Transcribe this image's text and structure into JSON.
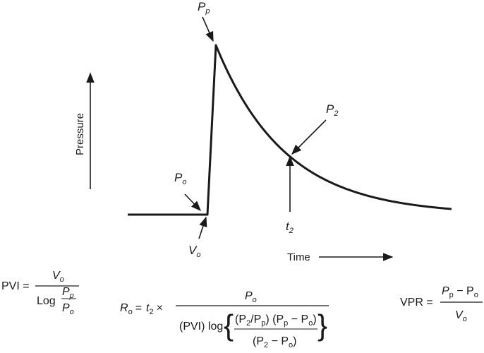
{
  "diagram": {
    "y_axis_label": "Pressure",
    "x_axis_label": "Time",
    "labels": {
      "P_p": {
        "main": "P",
        "sub": "p"
      },
      "P_2": {
        "main": "P",
        "sub": "2"
      },
      "P_o": {
        "main": "P",
        "sub": "o"
      },
      "t_2": {
        "main": "t",
        "sub": "2"
      },
      "V_o": {
        "main": "V",
        "sub": "o"
      }
    },
    "colors": {
      "ink": "#1a1a1a",
      "background": "#ffffff"
    }
  },
  "equations": {
    "pvi": {
      "lhs": "PVI =",
      "numerator": {
        "main": "V",
        "sub": "o"
      },
      "log": "Log",
      "inner_num": {
        "main": "P",
        "sub": "p"
      },
      "inner_den": {
        "main": "P",
        "sub": "o"
      }
    },
    "ro": {
      "lhs_main": "R",
      "lhs_sub": "o",
      "eq": "=",
      "t": "t",
      "t_sub": "2",
      "times": "×",
      "numerator": {
        "main": "P",
        "sub": "o"
      },
      "den_prefix": "(PVI) log",
      "inner_num_1": "(P",
      "inner_num_1_sub": "2",
      "inner_num_2": "/P",
      "inner_num_2_sub": "p",
      "inner_num_3": ") (P",
      "inner_num_3_sub": "p",
      "inner_num_4": " − P",
      "inner_num_4_sub": "o",
      "inner_num_5": ")",
      "inner_den_1": "(P",
      "inner_den_1_sub": "2",
      "inner_den_2": " − P",
      "inner_den_2_sub": "o",
      "inner_den_3": ")"
    },
    "vpr": {
      "lhs": "VPR =",
      "num_1": "P",
      "num_1_sub": "p",
      "num_2": " − P",
      "num_2_sub": "o",
      "den": "V",
      "den_sub": "o"
    }
  }
}
